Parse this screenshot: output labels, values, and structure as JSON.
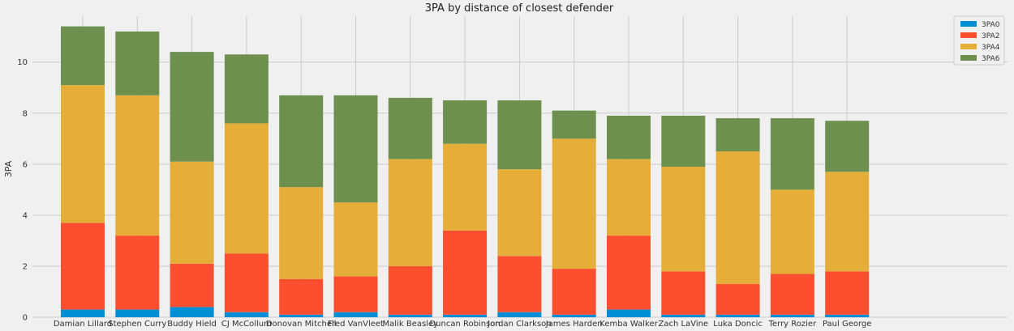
{
  "chart_data": {
    "type": "bar",
    "stacked": true,
    "title": "3PA by distance of closest defender",
    "xlabel": "",
    "ylabel": "3PA",
    "ylim": [
      0,
      11.8
    ],
    "yticks": [
      0,
      2,
      4,
      6,
      8,
      10
    ],
    "grid": true,
    "legend_position": "top-right",
    "categories": [
      "Damian Lillard",
      "Stephen Curry",
      "Buddy Hield",
      "CJ McCollum",
      "Donovan Mitchell",
      "Fred VanVleet",
      "Malik Beasley",
      "Duncan Robinson",
      "Jordan Clarkson",
      "James Harden",
      "Kemba Walker",
      "Zach LaVine",
      "Luka Doncic",
      "Terry Rozier",
      "Paul George"
    ],
    "series": [
      {
        "name": "3PA0",
        "color": "#008fd5",
        "values": [
          0.3,
          0.3,
          0.4,
          0.2,
          0.1,
          0.2,
          0.1,
          0.1,
          0.2,
          0.1,
          0.3,
          0.1,
          0.1,
          0.1,
          0.1
        ]
      },
      {
        "name": "3PA2",
        "color": "#fc4f30",
        "values": [
          3.4,
          2.9,
          1.7,
          2.3,
          1.4,
          1.4,
          1.9,
          3.3,
          2.2,
          1.8,
          2.9,
          1.7,
          1.2,
          1.6,
          1.7
        ]
      },
      {
        "name": "3PA4",
        "color": "#e5ae38",
        "values": [
          5.4,
          5.5,
          4.0,
          5.1,
          3.6,
          2.9,
          4.2,
          3.4,
          3.4,
          5.1,
          3.0,
          4.1,
          5.2,
          3.3,
          3.9
        ]
      },
      {
        "name": "3PA6",
        "color": "#6d904f",
        "values": [
          2.3,
          2.5,
          4.3,
          2.7,
          3.6,
          4.2,
          2.4,
          1.7,
          2.7,
          1.1,
          1.7,
          2.0,
          1.3,
          2.8,
          2.0
        ]
      }
    ]
  }
}
